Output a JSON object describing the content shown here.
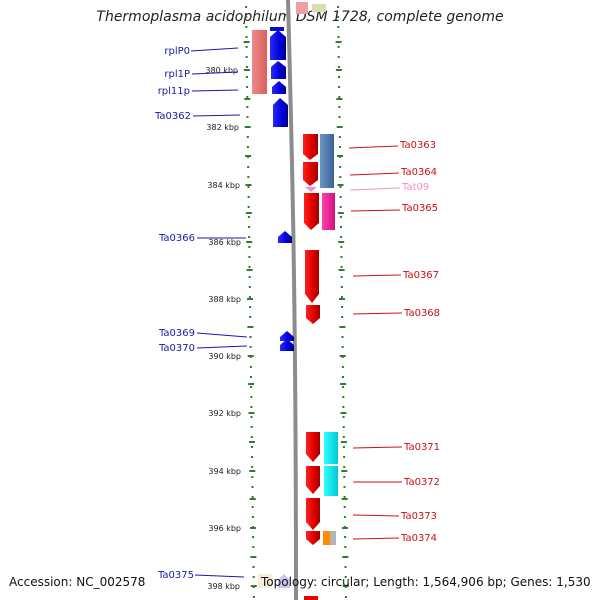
{
  "title": "Thermoplasma acidophilum DSM 1728, complete genome",
  "footer": {
    "accession": "Accession: NC_002578",
    "topology": "Topology: circular; Length: 1,564,906 bp; Genes: 1,530"
  },
  "colors": {
    "backbone": "#8c8c8c",
    "ruler_dots": "#2e7d32",
    "forward_gene": "#0a0ad8",
    "reverse_gene": "#e60000",
    "left_label": "#1a1aa6",
    "right_label": "#cc1111",
    "trna_label": "#f090c8"
  },
  "ruler": {
    "ticks": [
      {
        "label": "380 kbp",
        "kbp": 380
      },
      {
        "label": "382 kbp",
        "kbp": 382
      },
      {
        "label": "384 kbp",
        "kbp": 384
      },
      {
        "label": "386 kbp",
        "kbp": 386
      },
      {
        "label": "388 kbp",
        "kbp": 388
      },
      {
        "label": "390 kbp",
        "kbp": 390
      },
      {
        "label": "392 kbp",
        "kbp": 392
      },
      {
        "label": "394 kbp",
        "kbp": 394
      },
      {
        "label": "396 kbp",
        "kbp": 396
      },
      {
        "label": "398 kbp",
        "kbp": 398
      }
    ]
  },
  "genes_left": [
    {
      "name": "rplP0",
      "kbp": 378.9
    },
    {
      "name": "rpl1P",
      "kbp": 379.9
    },
    {
      "name": "rpl11p",
      "kbp": 380.5
    },
    {
      "name": "Ta0362",
      "kbp": 381.5
    },
    {
      "name": "Ta0366",
      "kbp": 385.8
    },
    {
      "name": "Ta0369",
      "kbp": 389.45
    },
    {
      "name": "Ta0370",
      "kbp": 389.85
    },
    {
      "name": "Ta0375",
      "kbp": 397.6
    }
  ],
  "genes_right": [
    {
      "name": "Ta0363",
      "kbp": 382.6,
      "kind": "cds"
    },
    {
      "name": "Ta0364",
      "kbp": 383.6,
      "kind": "cds"
    },
    {
      "name": "Tat09",
      "kbp": 384.05,
      "kind": "trna"
    },
    {
      "name": "Ta0365",
      "kbp": 384.7,
      "kind": "cds"
    },
    {
      "name": "Ta0367",
      "kbp": 387.0,
      "kind": "cds"
    },
    {
      "name": "Ta0368",
      "kbp": 388.35,
      "kind": "cds"
    },
    {
      "name": "Ta0371",
      "kbp": 393.1,
      "kind": "cds"
    },
    {
      "name": "Ta0372",
      "kbp": 394.35,
      "kind": "cds"
    },
    {
      "name": "Ta0373",
      "kbp": 395.5,
      "kind": "cds"
    },
    {
      "name": "Ta0374",
      "kbp": 396.25,
      "kind": "cds"
    }
  ]
}
